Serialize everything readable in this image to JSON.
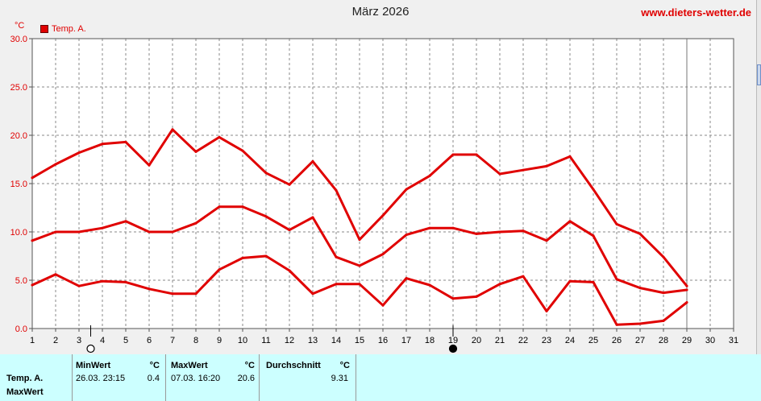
{
  "header": {
    "title": "März 2026",
    "site": "www.dieters-wetter.de",
    "unit": "°C",
    "legend_label": "Temp. A."
  },
  "colors": {
    "series": "#e00000",
    "panel_bg": "#ccffff",
    "plot_bg": "#ffffff"
  },
  "chart_data": {
    "type": "line",
    "title": "März 2026",
    "ylabel": "°C",
    "xlabel": "",
    "xlim": [
      1,
      31
    ],
    "ylim": [
      0,
      30
    ],
    "x_ticks": [
      1,
      2,
      3,
      4,
      5,
      6,
      7,
      8,
      9,
      10,
      11,
      12,
      13,
      14,
      15,
      16,
      17,
      18,
      19,
      20,
      21,
      22,
      23,
      24,
      25,
      26,
      27,
      28,
      29,
      30,
      31
    ],
    "y_ticks": [
      "0.0",
      "5.0",
      "10.0",
      "15.0",
      "20.0",
      "25.0",
      "30.0"
    ],
    "grid": true,
    "legend": "top-left",
    "markers": [
      {
        "x": 3.5,
        "icon": "moon-full-outline-icon"
      },
      {
        "x": 19,
        "icon": "moon-new-icon"
      }
    ],
    "series": [
      {
        "name": "Temp. A.",
        "role": "max",
        "x": [
          1,
          2,
          3,
          4,
          5,
          6,
          7,
          8,
          9,
          10,
          11,
          12,
          13,
          14,
          15,
          16,
          17,
          18,
          19,
          20,
          21,
          22,
          23,
          24,
          25,
          26,
          27,
          28,
          29
        ],
        "values": [
          15.6,
          17.0,
          18.2,
          19.1,
          19.3,
          16.9,
          20.6,
          18.3,
          19.8,
          18.4,
          16.1,
          14.9,
          17.3,
          14.3,
          9.2,
          11.7,
          14.4,
          15.8,
          18.0,
          18.0,
          16.0,
          16.4,
          16.8,
          17.8,
          14.4,
          10.8,
          9.8,
          7.4,
          4.4
        ]
      },
      {
        "name": "Temp. A.",
        "role": "mean",
        "x": [
          1,
          2,
          3,
          4,
          5,
          6,
          7,
          8,
          9,
          10,
          11,
          12,
          13,
          14,
          15,
          16,
          17,
          18,
          19,
          20,
          21,
          22,
          23,
          24,
          25,
          26,
          27,
          28,
          29
        ],
        "values": [
          9.1,
          10.0,
          10.0,
          10.4,
          11.1,
          10.0,
          10.0,
          10.9,
          12.6,
          12.6,
          11.6,
          10.2,
          11.5,
          7.4,
          6.5,
          7.7,
          9.7,
          10.4,
          10.4,
          9.8,
          10.0,
          10.1,
          9.1,
          11.1,
          9.6,
          5.1,
          4.2,
          3.7,
          4.0
        ]
      },
      {
        "name": "Temp. A.",
        "role": "min",
        "x": [
          1,
          2,
          3,
          4,
          5,
          6,
          7,
          8,
          9,
          10,
          11,
          12,
          13,
          14,
          15,
          16,
          17,
          18,
          19,
          20,
          21,
          22,
          23,
          24,
          25,
          26,
          27,
          28,
          29
        ],
        "values": [
          4.5,
          5.6,
          4.4,
          4.9,
          4.8,
          4.1,
          3.6,
          3.6,
          6.1,
          7.3,
          7.5,
          6.0,
          3.6,
          4.6,
          4.6,
          2.4,
          5.2,
          4.5,
          3.1,
          3.3,
          4.6,
          5.4,
          1.8,
          4.9,
          4.8,
          0.4,
          0.5,
          0.8,
          2.7
        ]
      }
    ]
  },
  "stats": {
    "headers": {
      "min": "MinWert",
      "min_unit": "°C",
      "max": "MaxWert",
      "max_unit": "°C",
      "avg": "Durchschnitt",
      "avg_unit": "°C"
    },
    "row_label": "Temp. A.",
    "row_label2": "MaxWert",
    "min_time": "26.03.  23:15",
    "min_value": "0.4",
    "max_time": "07.03.  16:20",
    "max_value": "20.6",
    "avg_value": "9.31"
  }
}
